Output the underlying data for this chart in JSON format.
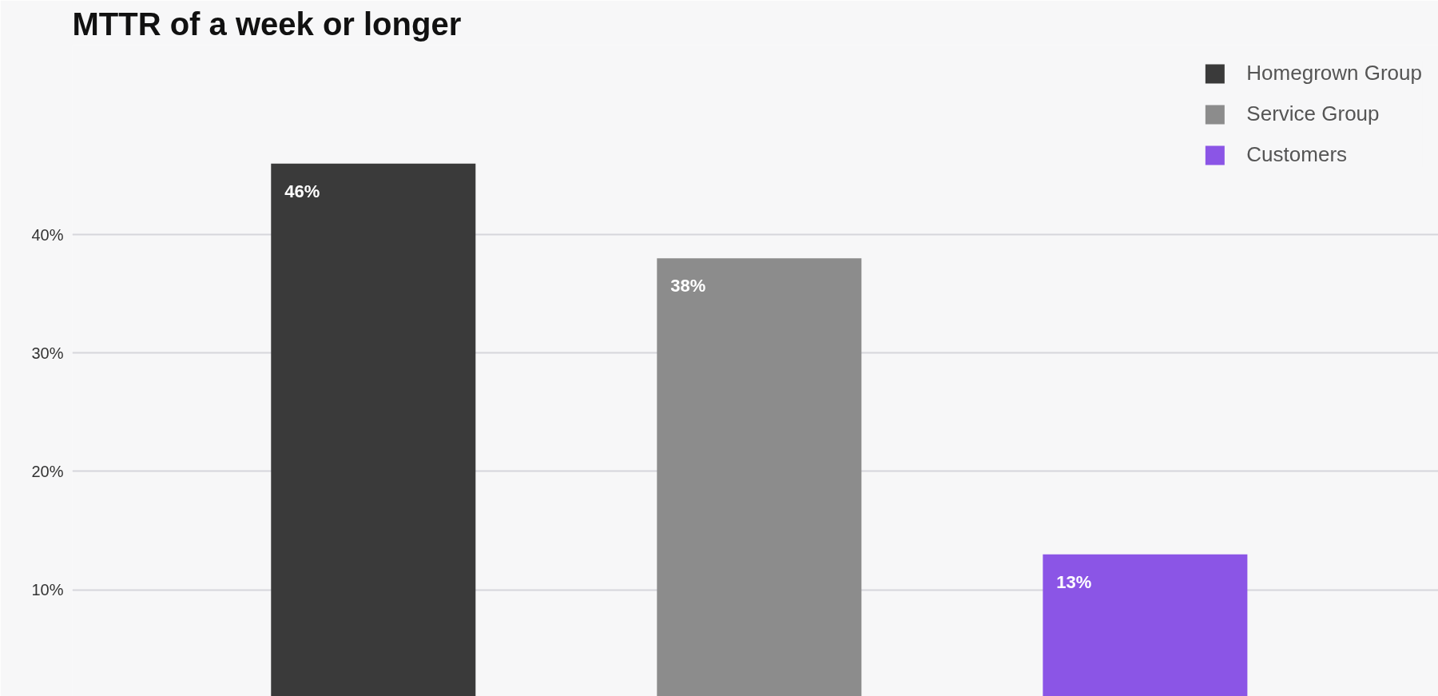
{
  "chart_data": {
    "type": "bar",
    "title": "MTTR of a week or longer",
    "categories": [
      null,
      null,
      null
    ],
    "series": [
      {
        "name": "Homegrown Group",
        "color": "#3a3a3a",
        "values": [
          46,
          null,
          null
        ],
        "value_labels": [
          "46%",
          null,
          null
        ]
      },
      {
        "name": "Service Group",
        "color": "#8c8c8c",
        "values": [
          null,
          38,
          null
        ],
        "value_labels": [
          null,
          "38%",
          null
        ]
      },
      {
        "name": "Customers",
        "color": "#8b55e6",
        "values": [
          null,
          null,
          13
        ],
        "value_labels": [
          null,
          null,
          "13%"
        ]
      }
    ],
    "ylim": [
      1,
      56
    ],
    "yticks": [
      {
        "value": 10,
        "label": "10%"
      },
      {
        "value": 20,
        "label": "20%"
      },
      {
        "value": 30,
        "label": "30%"
      },
      {
        "value": 40,
        "label": "40%"
      }
    ],
    "grid": "y",
    "legend": "top right",
    "tick_labels": "y"
  }
}
